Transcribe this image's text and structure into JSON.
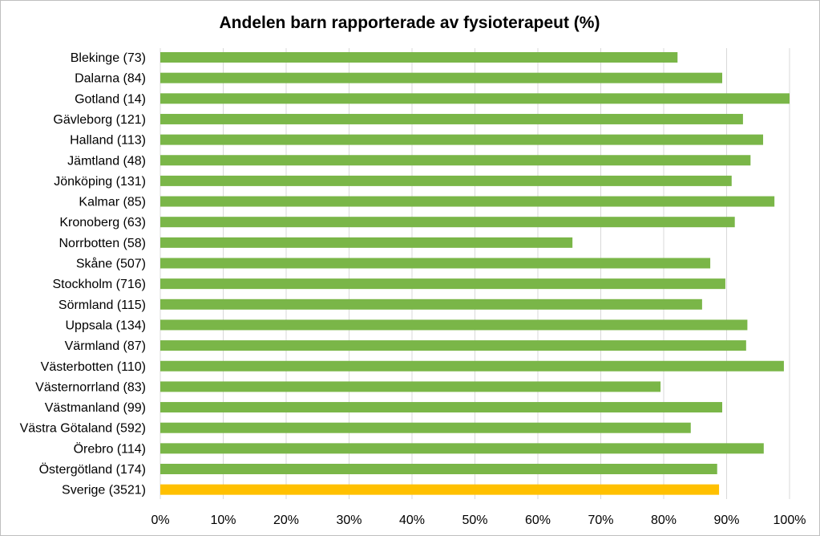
{
  "chart_data": {
    "type": "bar",
    "orientation": "horizontal",
    "title": "Andelen barn rapporterade av fysioterapeut (%)",
    "xlabel": "",
    "ylabel": "",
    "xlim": [
      0,
      100
    ],
    "x_ticks": [
      "0%",
      "10%",
      "20%",
      "30%",
      "40%",
      "50%",
      "60%",
      "70%",
      "80%",
      "90%",
      "100%"
    ],
    "grid": true,
    "legend": "none",
    "categories": [
      "Blekinge (73)",
      "Dalarna (84)",
      "Gotland (14)",
      "Gävleborg (121)",
      "Halland (113)",
      "Jämtland (48)",
      "Jönköping (131)",
      "Kalmar (85)",
      "Kronoberg (63)",
      "Norrbotten (58)",
      "Skåne (507)",
      "Stockholm (716)",
      "Sörmland (115)",
      "Uppsala (134)",
      "Värmland (87)",
      "Västerbotten (110)",
      "Västernorrland (83)",
      "Västmanland (99)",
      "Västra Götaland (592)",
      "Örebro (114)",
      "Östergötland (174)",
      "Sverige (3521)"
    ],
    "values": [
      82.2,
      89.3,
      100,
      92.6,
      95.8,
      93.8,
      90.8,
      97.6,
      91.3,
      65.5,
      87.4,
      89.8,
      86.1,
      93.3,
      93.1,
      99.1,
      79.5,
      89.3,
      84.3,
      95.9,
      88.5,
      88.8
    ],
    "colors": {
      "bar": "#7ab648",
      "bar_highlight": "#ffc000",
      "grid": "#d9d9d9",
      "border": "#bfbfbf"
    },
    "highlight_category": "Sverige (3521)"
  }
}
